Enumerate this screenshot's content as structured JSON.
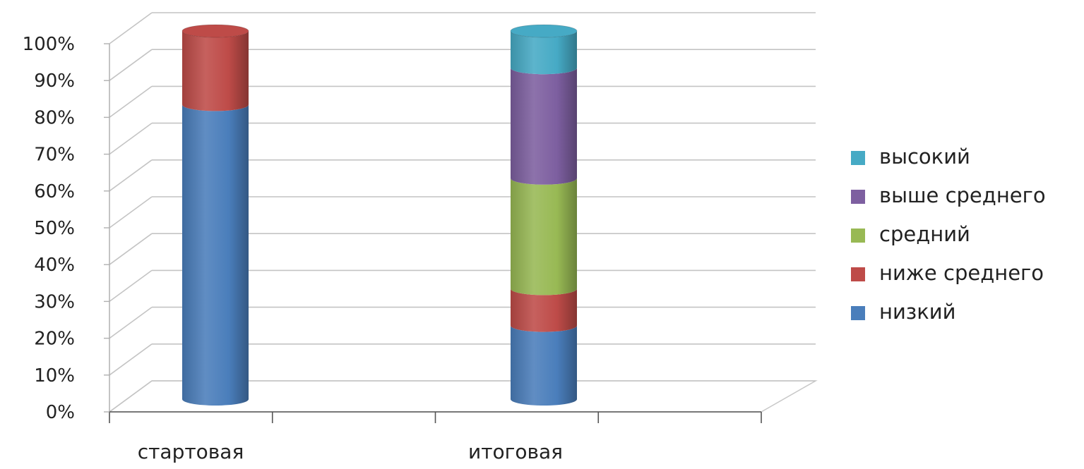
{
  "chart_data": {
    "type": "bar",
    "stacked": true,
    "percent_stacked": true,
    "style": "3d-cylinder",
    "categories": [
      "стартовая",
      "итоговая"
    ],
    "series": [
      {
        "name": "низкий",
        "color": "#4a7ebb",
        "values": [
          80,
          20
        ]
      },
      {
        "name": "ниже среднего",
        "color": "#be4b48",
        "values": [
          20,
          10
        ]
      },
      {
        "name": "средний",
        "color": "#98b954",
        "values": [
          0,
          30
        ]
      },
      {
        "name": "выше среднего",
        "color": "#7d5fa0",
        "values": [
          0,
          30
        ]
      },
      {
        "name": "высокий",
        "color": "#46aac5",
        "values": [
          0,
          10
        ]
      }
    ],
    "y_ticks": [
      "0%",
      "10%",
      "20%",
      "30%",
      "40%",
      "50%",
      "60%",
      "70%",
      "80%",
      "90%",
      "100%"
    ],
    "ylim": [
      0,
      100
    ],
    "grid": true,
    "legend_position": "right",
    "legend_order": [
      "высокий",
      "выше среднего",
      "средний",
      "ниже среднего",
      "низкий"
    ]
  }
}
